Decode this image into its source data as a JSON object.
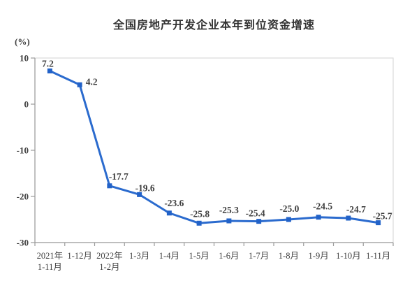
{
  "chart_data": {
    "type": "line",
    "title": "全国房地产开发企业本年到位资金增速",
    "ylabel": "(%)",
    "xlabel": "",
    "categories": [
      "2021年\n1-11月",
      "1-12月",
      "2022年\n1-2月",
      "1-3月",
      "1-4月",
      "1-5月",
      "1-6月",
      "1-7月",
      "1-8月",
      "1-9月",
      "1-10月",
      "1-11月"
    ],
    "values": [
      7.2,
      4.2,
      -17.7,
      -19.6,
      -23.6,
      -25.8,
      -25.3,
      -25.4,
      -25.0,
      -24.5,
      -24.7,
      -25.7
    ],
    "point_labels": [
      "7.2",
      "4.2",
      "-17.7",
      "-19.6",
      "-23.6",
      "-25.8",
      "-25.3",
      "-25.4",
      "-25.0",
      "-24.5",
      "-24.7",
      "-25.7"
    ],
    "ylim": [
      -30,
      10
    ],
    "yticks": [
      10,
      0,
      -10,
      -20,
      -30
    ],
    "grid": false,
    "legend": "none",
    "colors": {
      "line": "#2b6bce",
      "marker": "#2262c8",
      "label": "#3f3f3f",
      "axis": "#9b9b9b",
      "border": "#dadada",
      "title": "#333333"
    }
  }
}
